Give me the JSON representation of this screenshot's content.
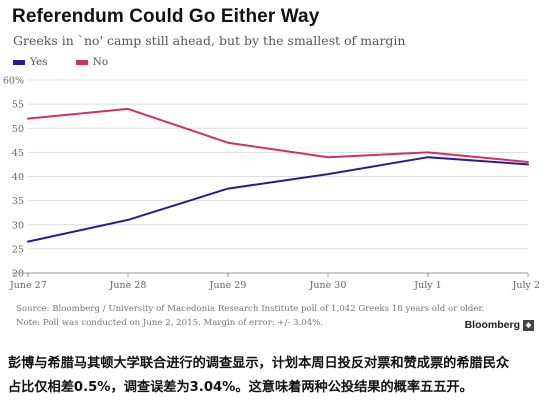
{
  "header": {
    "title": "Referendum Could Go Either Way",
    "subtitle": "Greeks in `no' camp still ahead, but by the smallest of margin"
  },
  "legend": {
    "yes_label": "Yes",
    "no_label": "No"
  },
  "colors": {
    "yes": "#2e1a8e",
    "no": "#c8336c",
    "grid": "#dddddd",
    "axis": "#999999"
  },
  "chart_data": {
    "type": "line",
    "x": [
      "June 27",
      "June 28",
      "June 29",
      "June 30",
      "July 1",
      "July 2"
    ],
    "series": [
      {
        "name": "Yes",
        "values": [
          26.5,
          31,
          37.5,
          40.5,
          44,
          42.5
        ]
      },
      {
        "name": "No",
        "values": [
          52,
          54,
          47,
          44,
          45,
          43
        ]
      }
    ],
    "yticks": [
      "20",
      "25",
      "30",
      "35",
      "40",
      "45",
      "50",
      "55",
      "60%"
    ],
    "ylim": [
      20,
      60
    ],
    "grid": true,
    "legend_position": "top-left"
  },
  "footnotes": {
    "source": "Source: Bloomberg / University of Macedonia Research Institute poll of 1,042 Greeks 18 years old or older.",
    "note": "Note: Poll was conducted on June 2, 2015. Margin of error: +/- 3.04%."
  },
  "brand": {
    "name": "Bloomberg",
    "icon": "bloomberg-logo-icon"
  },
  "caption": {
    "line1": "彭博与希腊马其顿大学联合进行的调查显示，计划本周日投反对票和赞成票的希腊民众",
    "line2": "占比仅相差0.5%，调查误差为3.04%。这意味着两种公投结果的概率五五开。"
  }
}
